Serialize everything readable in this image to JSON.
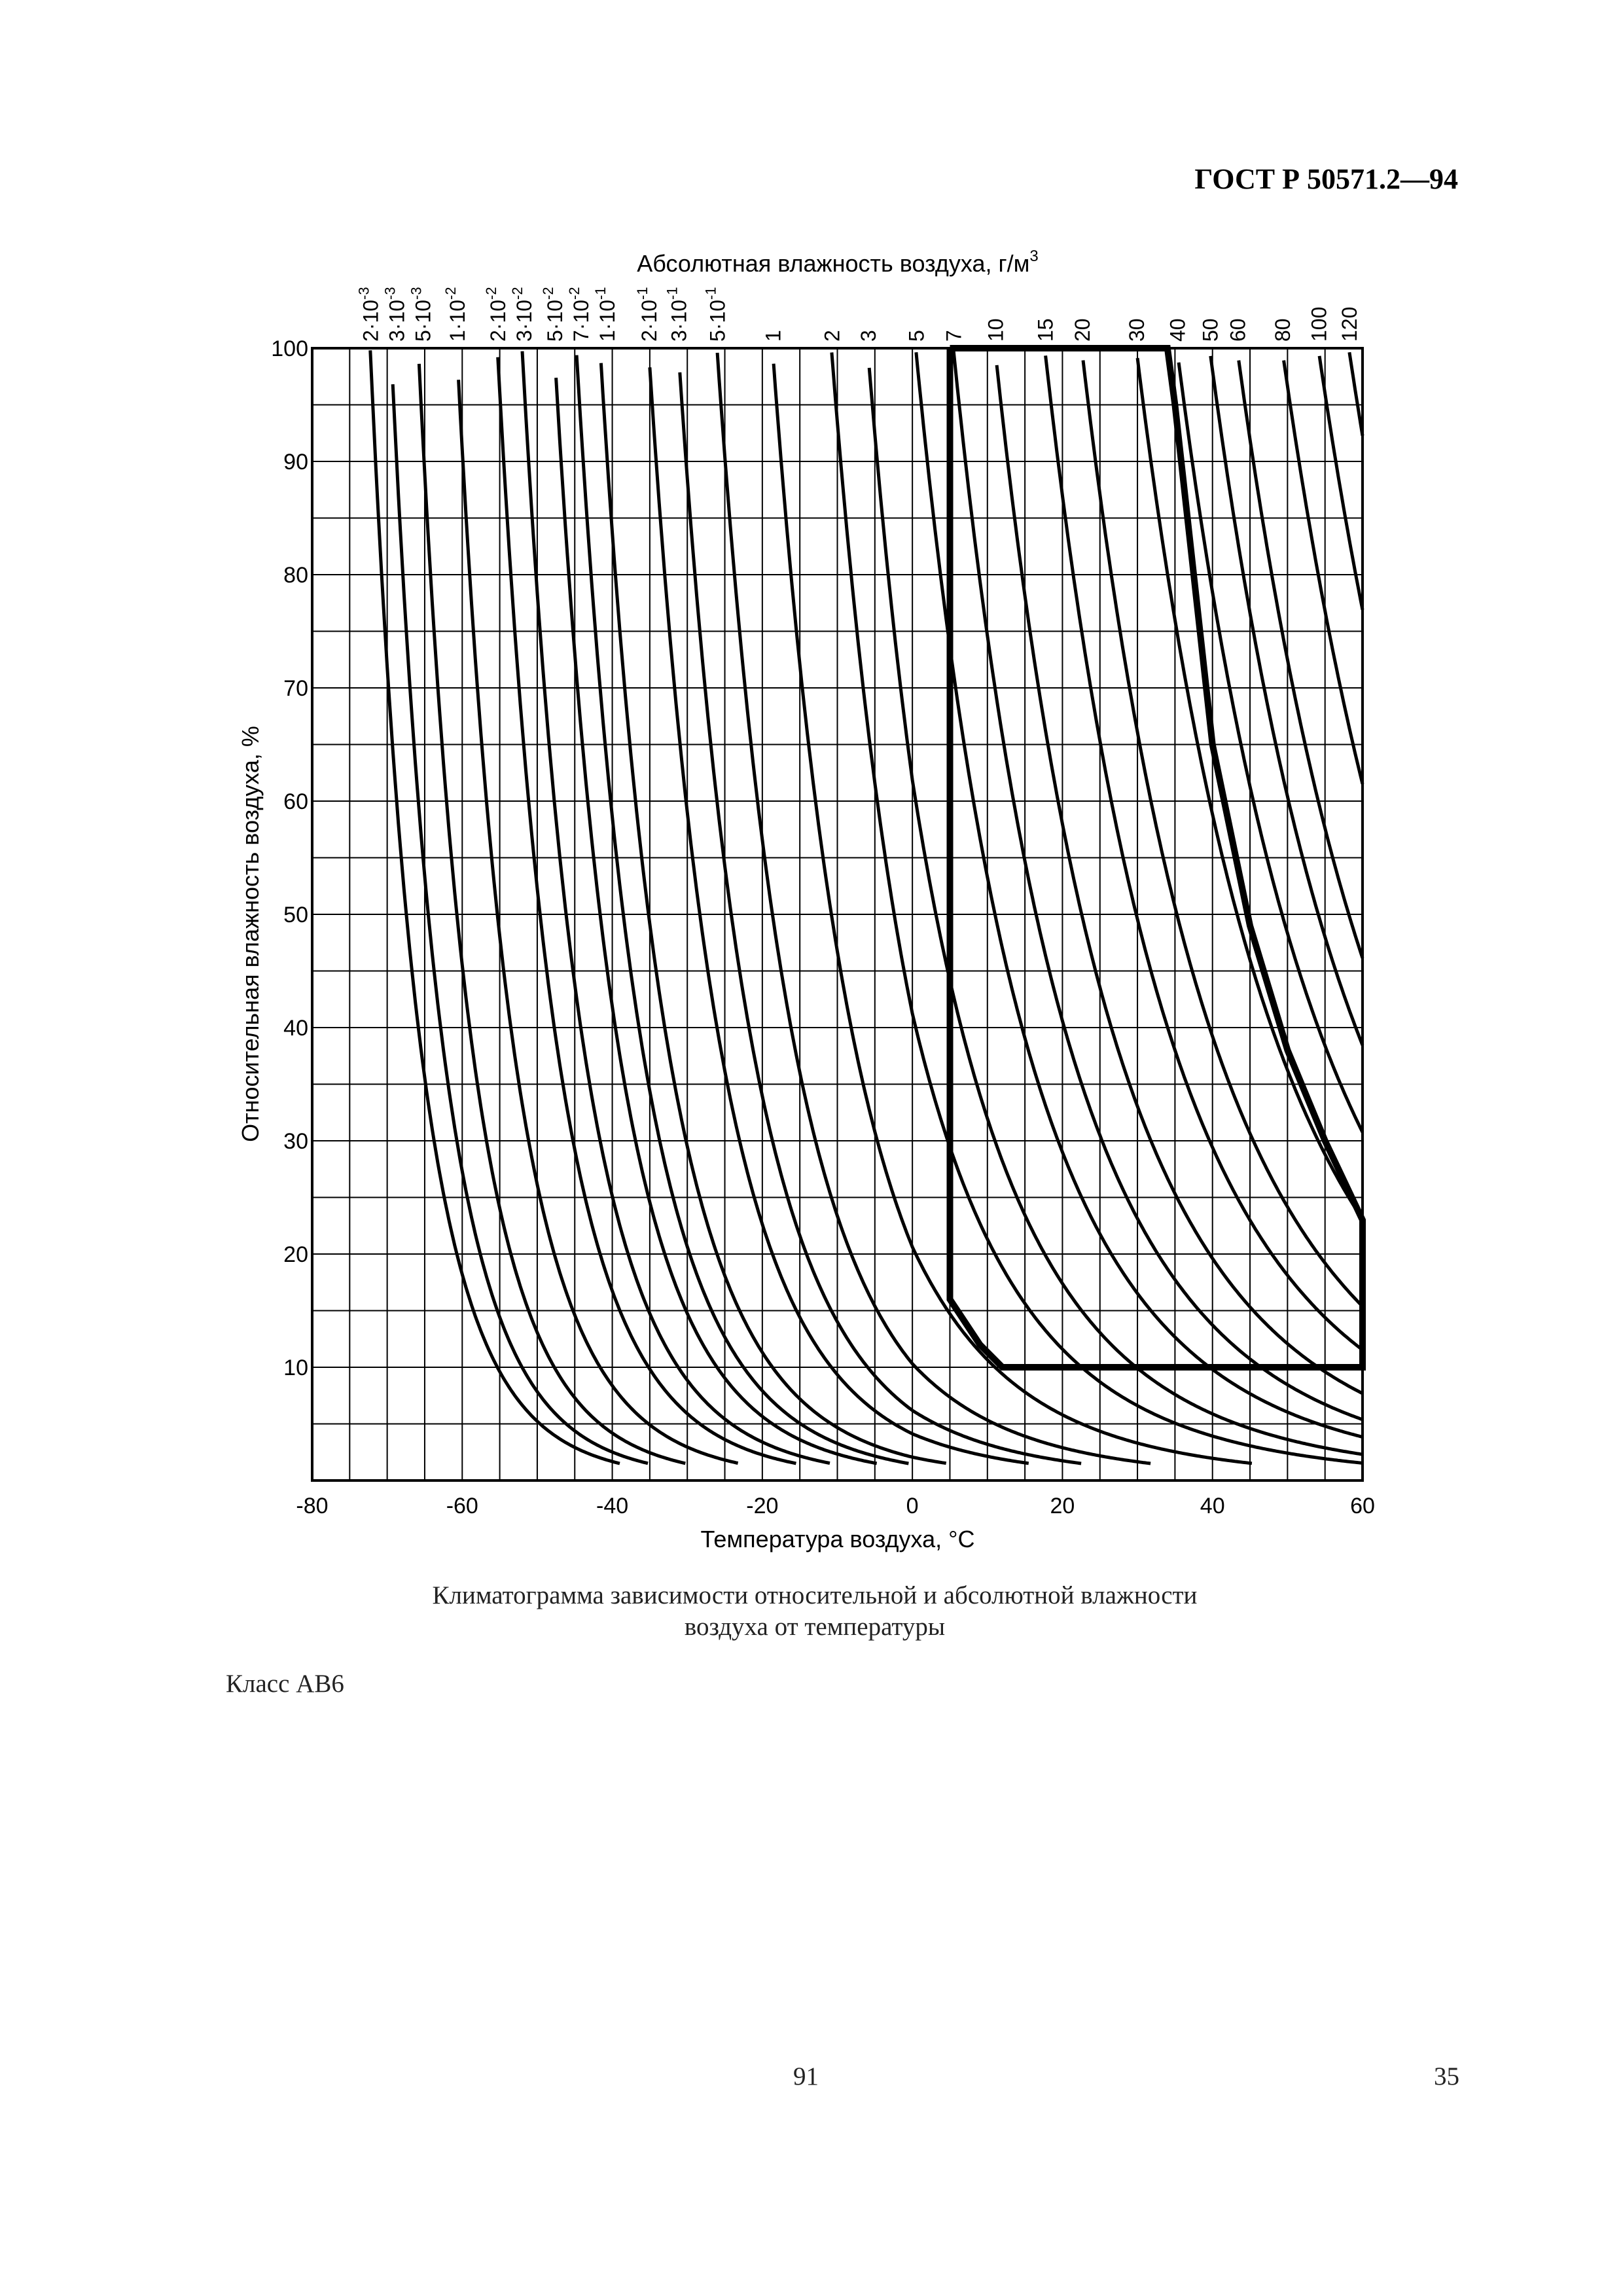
{
  "header": {
    "document_code": "ГОСТ Р 50571.2—94"
  },
  "chart_data": {
    "type": "line",
    "title": "Абсолютная влажность воздуха, г/м",
    "title_sup": "3",
    "xlabel": "Температура воздуха, °С",
    "ylabel": "Относительная влажность воздуха, %",
    "xlim": [
      -80,
      60
    ],
    "ylim": [
      0,
      100
    ],
    "x_ticks": [
      -80,
      -60,
      -40,
      -20,
      0,
      20,
      40,
      60
    ],
    "y_ticks": [
      10,
      20,
      30,
      40,
      50,
      60,
      70,
      80,
      90,
      100
    ],
    "x_grid_step": 5,
    "y_grid_step": 5,
    "grid": true,
    "absolute_humidity_labels": [
      {
        "base": "2·10",
        "exp": "-3"
      },
      {
        "base": "3·10",
        "exp": "-3"
      },
      {
        "base": "5·10",
        "exp": "-3"
      },
      {
        "base": "1·10",
        "exp": "-2"
      },
      {
        "base": "2·10",
        "exp": "-2"
      },
      {
        "base": "3·10",
        "exp": "-2"
      },
      {
        "base": "5·10",
        "exp": "-2"
      },
      {
        "base": "7·10",
        "exp": "-2"
      },
      {
        "base": "1·10",
        "exp": "-1"
      },
      {
        "base": "2·10",
        "exp": "-1"
      },
      {
        "base": "3·10",
        "exp": "-1"
      },
      {
        "base": "5·10",
        "exp": "-1"
      },
      {
        "base": "1",
        "exp": ""
      },
      {
        "base": "2",
        "exp": ""
      },
      {
        "base": "3",
        "exp": ""
      },
      {
        "base": "5",
        "exp": ""
      },
      {
        "base": "7",
        "exp": ""
      },
      {
        "base": "10",
        "exp": ""
      },
      {
        "base": "15",
        "exp": ""
      },
      {
        "base": "20",
        "exp": ""
      },
      {
        "base": "30",
        "exp": ""
      },
      {
        "base": "40",
        "exp": ""
      },
      {
        "base": "50",
        "exp": ""
      },
      {
        "base": "60",
        "exp": ""
      },
      {
        "base": "80",
        "exp": ""
      },
      {
        "base": "100",
        "exp": ""
      },
      {
        "base": "120",
        "exp": ""
      }
    ],
    "absolute_humidity_values": [
      0.002,
      0.003,
      0.005,
      0.01,
      0.02,
      0.03,
      0.05,
      0.07,
      0.1,
      0.2,
      0.3,
      0.5,
      1,
      2,
      3,
      5,
      7,
      10,
      15,
      20,
      30,
      40,
      50,
      60,
      80,
      100,
      120
    ],
    "climate_class_boundary": {
      "points": [
        [
          5,
          100
        ],
        [
          34,
          100
        ],
        [
          35,
          95
        ],
        [
          40,
          65
        ],
        [
          45,
          49
        ],
        [
          50,
          38
        ],
        [
          55,
          30
        ],
        [
          60,
          23
        ],
        [
          60,
          10
        ],
        [
          12,
          10
        ],
        [
          9,
          12
        ],
        [
          5,
          16
        ],
        [
          5,
          100
        ]
      ]
    }
  },
  "caption": {
    "line1": "Климатограмма зависимости относительной и абсолютной влажности",
    "line2": "воздуха от температуры"
  },
  "class_label": "Класс АВ6",
  "footer": {
    "page_center": "91",
    "page_right": "35"
  }
}
